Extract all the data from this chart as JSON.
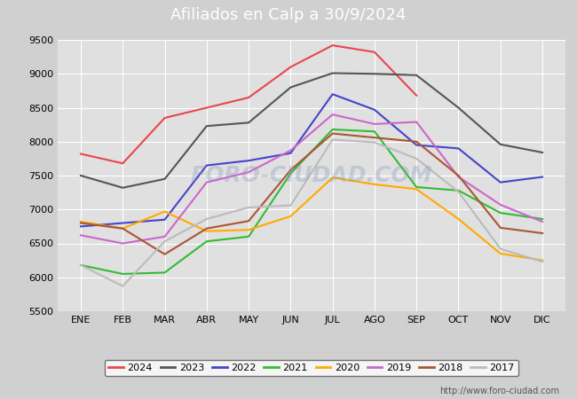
{
  "title": "Afiliados en Calp a 30/9/2024",
  "title_bg": "#5588bb",
  "ylim": [
    5500,
    9500
  ],
  "yticks": [
    5500,
    6000,
    6500,
    7000,
    7500,
    8000,
    8500,
    9000,
    9500
  ],
  "months": [
    "ENE",
    "FEB",
    "MAR",
    "ABR",
    "MAY",
    "JUN",
    "JUL",
    "AGO",
    "SEP",
    "OCT",
    "NOV",
    "DIC"
  ],
  "series": [
    {
      "label": "2024",
      "color": "#e8474c",
      "data": [
        7820,
        7680,
        8350,
        8500,
        8650,
        9100,
        9420,
        9320,
        8680,
        null,
        null,
        null
      ]
    },
    {
      "label": "2023",
      "color": "#555555",
      "data": [
        7500,
        7320,
        7450,
        8230,
        8280,
        8800,
        9010,
        9000,
        8980,
        8500,
        7960,
        7840
      ]
    },
    {
      "label": "2022",
      "color": "#4444cc",
      "data": [
        6750,
        6800,
        6850,
        7650,
        7720,
        7830,
        8700,
        8470,
        7950,
        7900,
        7400,
        7480
      ]
    },
    {
      "label": "2021",
      "color": "#33bb33",
      "data": [
        6180,
        6050,
        6070,
        6530,
        6600,
        7530,
        8180,
        8150,
        7330,
        7280,
        6950,
        6860
      ]
    },
    {
      "label": "2020",
      "color": "#ffaa00",
      "data": [
        6820,
        6720,
        6970,
        6680,
        6700,
        6900,
        7470,
        7370,
        7300,
        6860,
        6350,
        6250
      ]
    },
    {
      "label": "2019",
      "color": "#cc66cc",
      "data": [
        6620,
        6500,
        6600,
        7400,
        7550,
        7870,
        8400,
        8260,
        8290,
        7480,
        7070,
        6820
      ]
    },
    {
      "label": "2018",
      "color": "#aa5533",
      "data": [
        6800,
        6720,
        6340,
        6720,
        6830,
        7580,
        8120,
        8060,
        8000,
        7500,
        6730,
        6650
      ]
    },
    {
      "label": "2017",
      "color": "#bbbbbb",
      "data": [
        6180,
        5870,
        6530,
        6860,
        7030,
        7060,
        8030,
        7990,
        7750,
        7260,
        6420,
        6230
      ]
    }
  ],
  "watermark": "FORO-CIUDAD.COM",
  "url": "http://www.foro-ciudad.com",
  "bg_color": "#d0d0d0",
  "plot_bg_color": "#e0e0e0",
  "grid_color": "#ffffff",
  "legend_border_color": "#555555",
  "title_fontsize": 13,
  "tick_fontsize": 8,
  "url_fontsize": 7
}
